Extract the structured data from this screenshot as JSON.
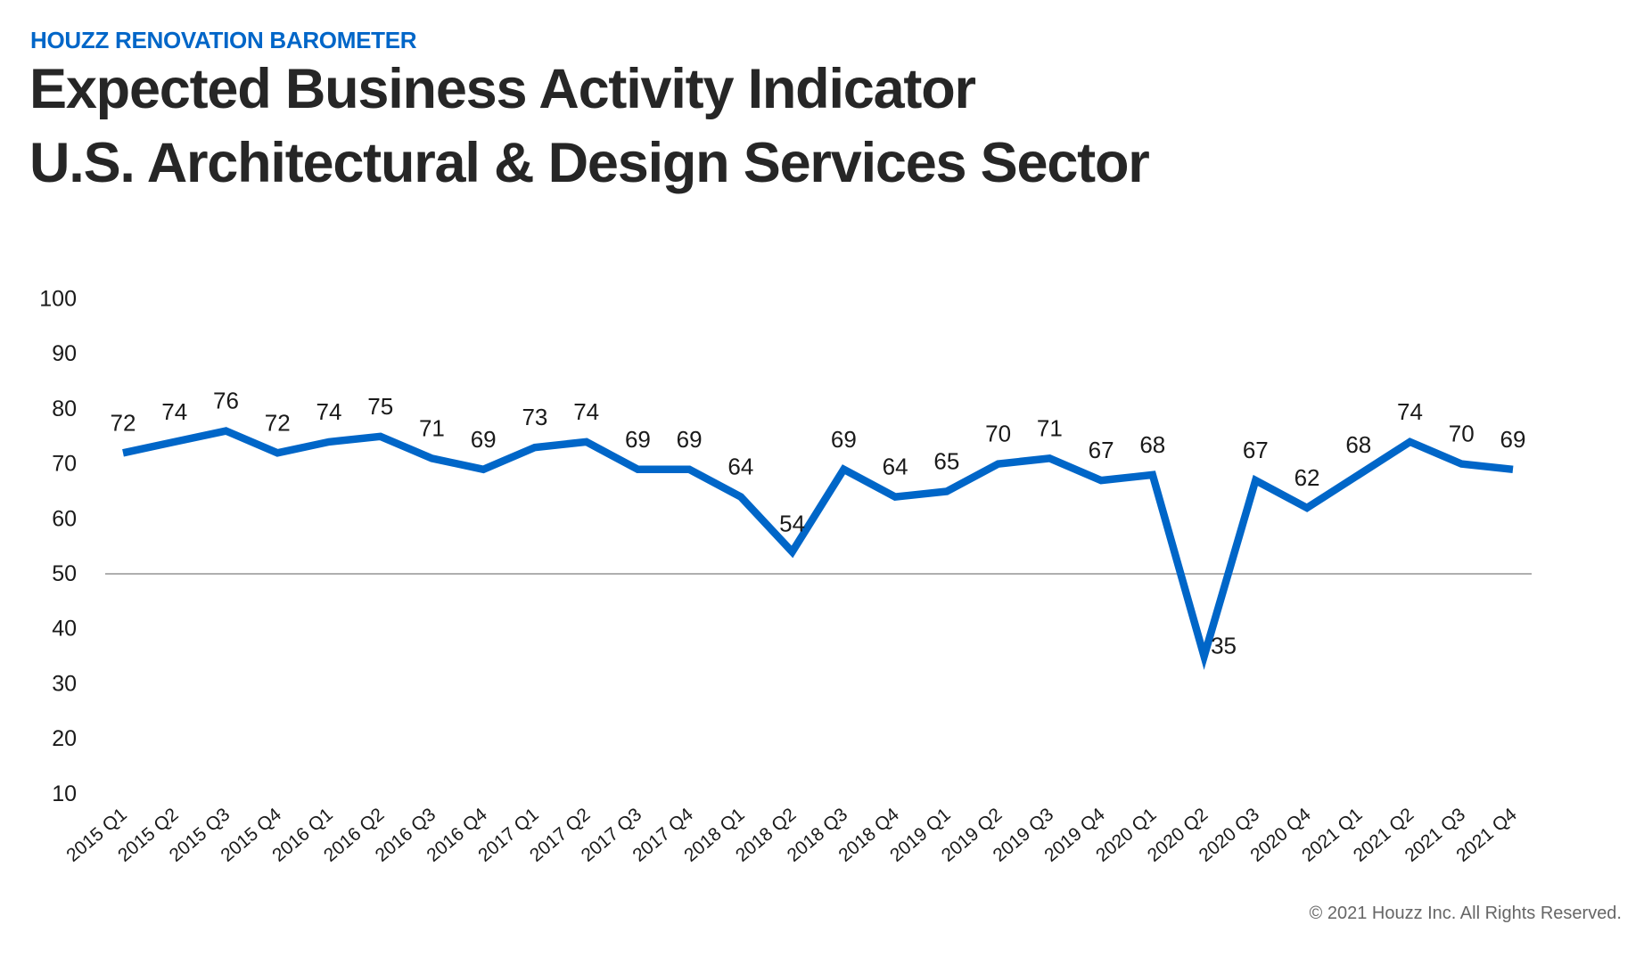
{
  "header": {
    "kicker": "HOUZZ RENOVATION BAROMETER",
    "title_line1": "Expected Business Activity Indicator",
    "title_line2": "U.S. Architectural & Design Services Sector"
  },
  "footer": {
    "copyright": "© 2021 Houzz Inc. All Rights Reserved."
  },
  "colors": {
    "line": "#0066c8",
    "kicker": "#0066c8",
    "reference_line": "#7f7f7f",
    "text": "#1a1a1a"
  },
  "chart_data": {
    "type": "line",
    "title": "Expected Business Activity Indicator U.S. Architectural & Design Services Sector",
    "xlabel": "",
    "ylabel": "",
    "ylim": [
      10,
      100
    ],
    "yticks": [
      "100",
      "90",
      "80",
      "70",
      "60",
      "50",
      "40",
      "30",
      "20",
      "10"
    ],
    "grid": false,
    "reference_line": 50,
    "legend": "none",
    "categories": [
      "2015 Q1",
      "2015 Q2",
      "2015 Q3",
      "2015 Q4",
      "2016 Q1",
      "2016 Q2",
      "2016 Q3",
      "2016 Q4",
      "2017 Q1",
      "2017 Q2",
      "2017 Q3",
      "2017 Q4",
      "2018 Q1",
      "2018 Q2",
      "2018 Q3",
      "2018 Q4",
      "2019 Q1",
      "2019 Q2",
      "2019 Q3",
      "2019 Q4",
      "2020 Q1",
      "2020 Q2",
      "2020 Q3",
      "2020 Q4",
      "2021 Q1",
      "2021 Q2",
      "2021 Q3",
      "2021 Q4"
    ],
    "series": [
      {
        "name": "Expected Business Activity Indicator",
        "values": [
          72,
          74,
          76,
          72,
          74,
          75,
          71,
          69,
          73,
          74,
          69,
          69,
          64,
          54,
          69,
          64,
          65,
          70,
          71,
          67,
          68,
          35,
          67,
          62,
          68,
          74,
          70,
          69
        ],
        "labels": [
          "72",
          "74",
          "76",
          "72",
          "74",
          "75",
          "71",
          "69",
          "73",
          "74",
          "69",
          "69",
          "64",
          "54",
          "69",
          "64",
          "65",
          "70",
          "71",
          "67",
          "68",
          "35",
          "67",
          "62",
          "68",
          "74",
          "70",
          "69"
        ]
      }
    ]
  }
}
